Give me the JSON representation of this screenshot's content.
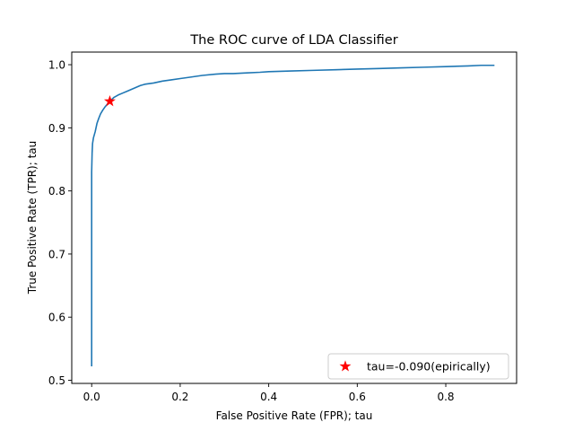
{
  "chart_data": {
    "type": "line",
    "title": "The ROC curve of LDA Classifier",
    "xlabel": "False Positive Rate (FPR); tau",
    "ylabel": "True Positive Rate (TPR); tau",
    "xlim": [
      -0.045,
      0.96
    ],
    "ylim": [
      0.495,
      1.02
    ],
    "xticks": [
      0.0,
      0.2,
      0.4,
      0.6,
      0.8
    ],
    "xtick_labels": [
      "0.0",
      "0.2",
      "0.4",
      "0.6",
      "0.8"
    ],
    "yticks": [
      0.5,
      0.6,
      0.7,
      0.8,
      0.9,
      1.0
    ],
    "ytick_labels": [
      "0.5",
      "0.6",
      "0.7",
      "0.8",
      "0.9",
      "1.0"
    ],
    "grid": false,
    "legend_position": "lower-right",
    "series": [
      {
        "color": "#1f77b4",
        "x": [
          0.0,
          0.0,
          0.0,
          0.001,
          0.002,
          0.004,
          0.008,
          0.012,
          0.016,
          0.02,
          0.025,
          0.03,
          0.035,
          0.041,
          0.05,
          0.06,
          0.07,
          0.08,
          0.09,
          0.1,
          0.11,
          0.12,
          0.14,
          0.16,
          0.18,
          0.2,
          0.22,
          0.25,
          0.28,
          0.3,
          0.32,
          0.35,
          0.38,
          0.4,
          0.45,
          0.5,
          0.55,
          0.6,
          0.65,
          0.7,
          0.75,
          0.8,
          0.85,
          0.88,
          0.91
        ],
        "y": [
          0.522,
          0.73,
          0.83,
          0.86,
          0.875,
          0.884,
          0.894,
          0.907,
          0.915,
          0.922,
          0.928,
          0.933,
          0.937,
          0.942,
          0.948,
          0.952,
          0.955,
          0.958,
          0.961,
          0.964,
          0.967,
          0.969,
          0.971,
          0.974,
          0.976,
          0.978,
          0.98,
          0.983,
          0.985,
          0.986,
          0.986,
          0.987,
          0.988,
          0.989,
          0.99,
          0.991,
          0.992,
          0.993,
          0.994,
          0.995,
          0.996,
          0.997,
          0.998,
          0.999,
          0.999
        ]
      },
      {
        "type": "scatter",
        "name": "tau=-0.090(epirically)",
        "marker": "star",
        "color": "#ff0000",
        "x": [
          0.041
        ],
        "y": [
          0.942
        ]
      }
    ]
  }
}
